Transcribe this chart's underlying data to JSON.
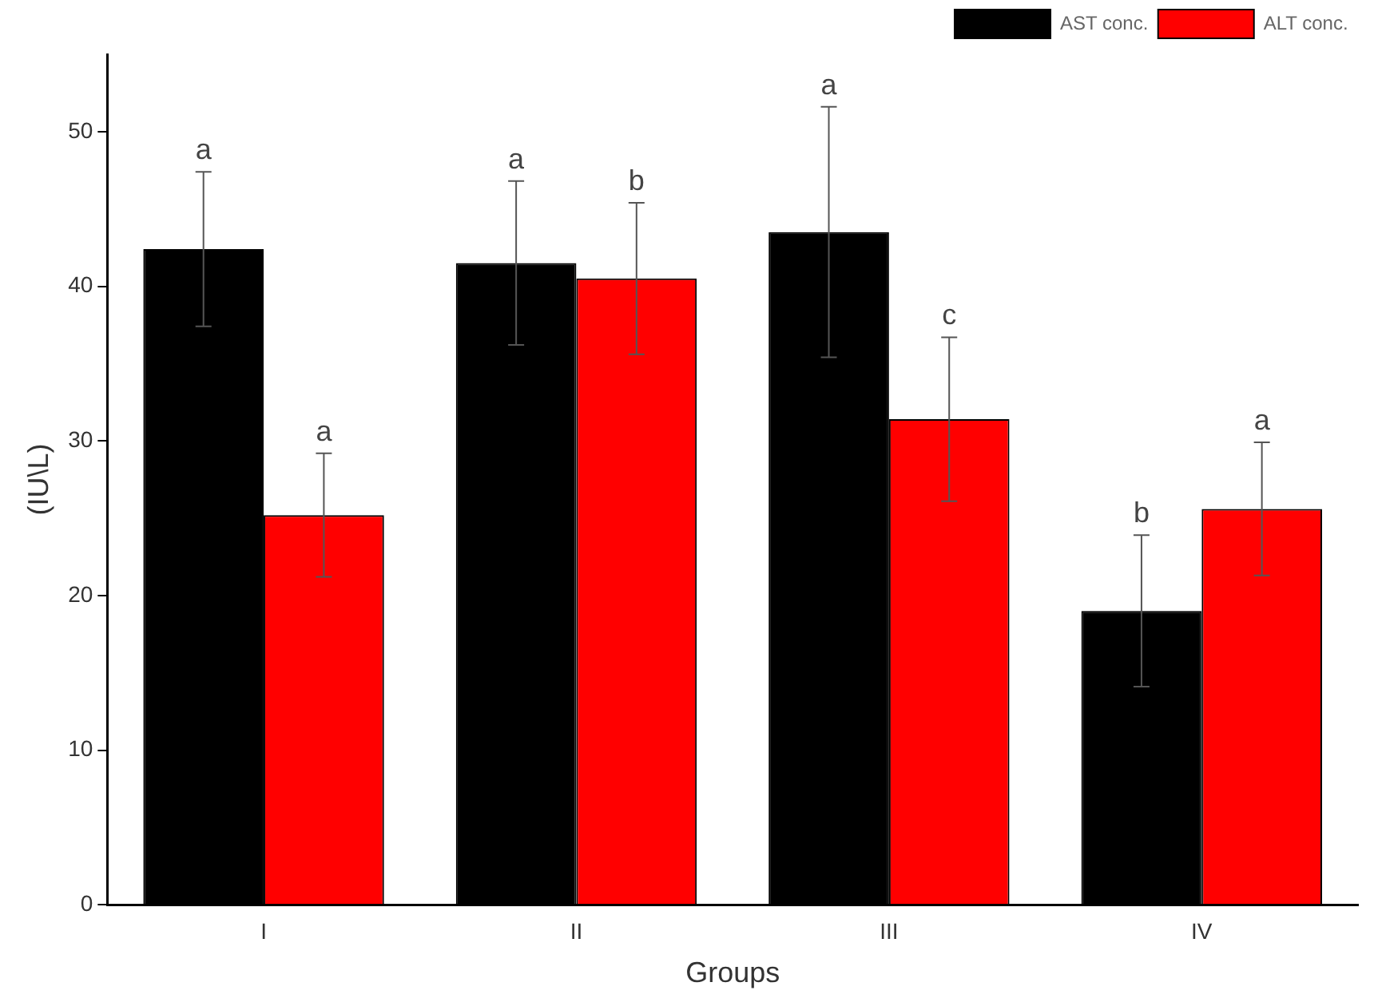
{
  "chart_data": {
    "type": "bar",
    "xlabel": "Groups",
    "ylabel": "(IU\\L)",
    "categories": [
      "I",
      "II",
      "III",
      "IV"
    ],
    "series": [
      {
        "name": "AST conc.",
        "color": "#000000",
        "values": [
          42.4,
          41.5,
          43.5,
          19.0
        ],
        "errors": [
          5.0,
          5.3,
          8.1,
          4.9
        ]
      },
      {
        "name": "ALT conc.",
        "color": "#ff0000",
        "values": [
          25.2,
          40.5,
          31.4,
          25.6
        ],
        "errors": [
          4.0,
          4.9,
          5.3,
          4.3
        ]
      }
    ],
    "ylim": [
      0,
      55
    ],
    "yticks": [
      0,
      10,
      20,
      30,
      40,
      50
    ],
    "grid": false,
    "legend": "top right",
    "annotations": [
      "a",
      "a",
      "a",
      "b",
      "a",
      "c",
      "b",
      "a"
    ]
  }
}
